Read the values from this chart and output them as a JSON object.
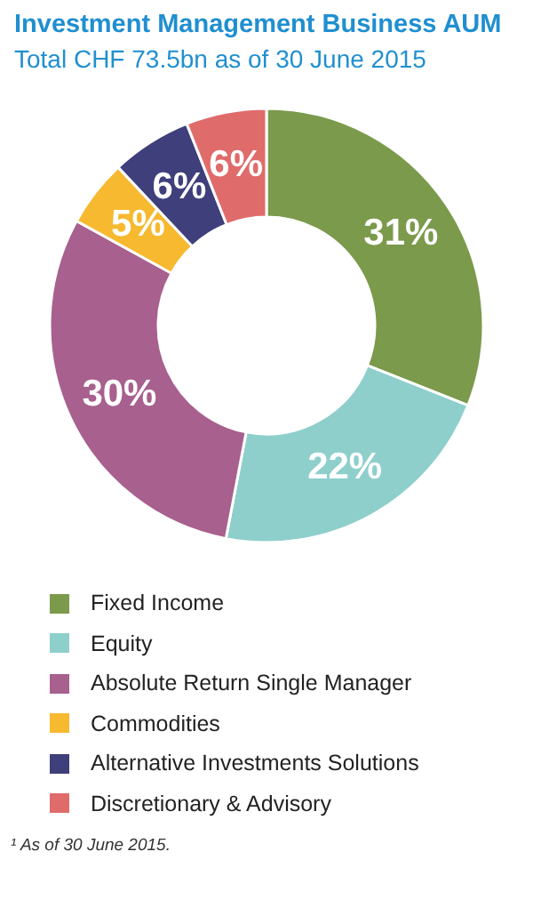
{
  "chart_data": {
    "type": "donut",
    "title": "Investment Management Business AUM",
    "subtitle": "Total CHF 73.5bn as of 30 June 2015",
    "categories": [
      "Fixed Income",
      "Equity",
      "Absolute Return Single Manager",
      "Commodities",
      "Alternative Investments Solutions",
      "Discretionary & Advisory"
    ],
    "values": [
      31,
      22,
      30,
      5,
      6,
      6
    ],
    "colors": [
      "#7b9a4c",
      "#8ecfcc",
      "#a8608e",
      "#f6b92f",
      "#3f3f7c",
      "#e06b6b"
    ],
    "value_labels": [
      "31%",
      "22%",
      "30%",
      "5%",
      "6%",
      "6%"
    ],
    "legend": "bottom",
    "annotations": [
      "¹ As of 30 June 2015."
    ]
  }
}
